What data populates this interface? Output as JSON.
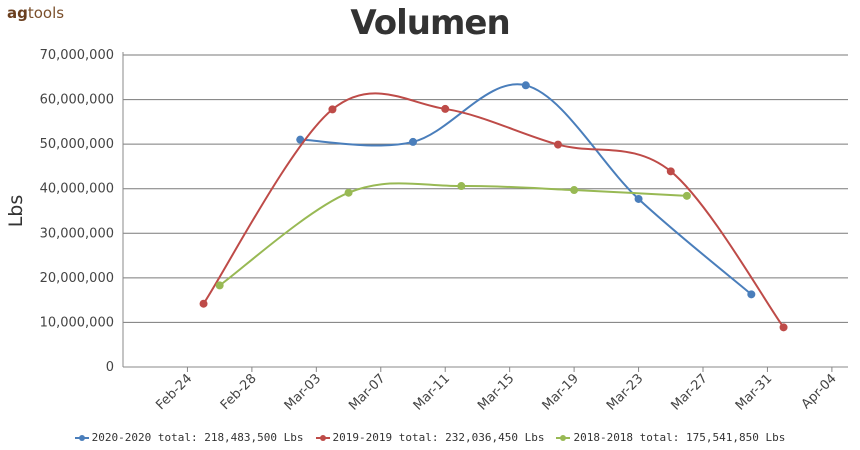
{
  "logo": {
    "bold": "ag",
    "rest": "tools"
  },
  "chart_data": {
    "type": "line",
    "title": "Volumen",
    "ylabel": "Lbs",
    "xlabel": "",
    "ylim": [
      0,
      70000000
    ],
    "yticks": [
      0,
      10000000,
      20000000,
      30000000,
      40000000,
      50000000,
      60000000,
      70000000
    ],
    "ytick_labels": [
      "0",
      "10,000,000",
      "20,000,000",
      "30,000,000",
      "40,000,000",
      "50,000,000",
      "60,000,000",
      "70,000,000"
    ],
    "xlim": [
      "2020-02-20",
      "2020-04-05"
    ],
    "xticks": [
      "2020-02-24",
      "2020-02-28",
      "2020-03-03",
      "2020-03-07",
      "2020-03-11",
      "2020-03-15",
      "2020-03-19",
      "2020-03-23",
      "2020-03-27",
      "2020-03-31",
      "2020-04-04"
    ],
    "xtick_labels": [
      "Feb-24",
      "Feb-28",
      "Mar-03",
      "Mar-07",
      "Mar-11",
      "Mar-15",
      "Mar-19",
      "Mar-23",
      "Mar-27",
      "Mar-31",
      "Apr-04"
    ],
    "grid": "horizontal",
    "legend_position": "bottom",
    "series": [
      {
        "name": "2020-2020 total: 218,483,500 Lbs",
        "color": "#4a7ebb",
        "points": [
          {
            "x": "2020-03-02",
            "y": 51000000
          },
          {
            "x": "2020-03-09",
            "y": 50500000
          },
          {
            "x": "2020-03-16",
            "y": 63200000
          },
          {
            "x": "2020-03-23",
            "y": 37700000
          },
          {
            "x": "2020-03-30",
            "y": 16300000
          }
        ]
      },
      {
        "name": "2019-2019 total: 232,036,450 Lbs",
        "color": "#be4b48",
        "points": [
          {
            "x": "2020-02-25",
            "y": 14200000
          },
          {
            "x": "2020-03-04",
            "y": 57800000
          },
          {
            "x": "2020-03-11",
            "y": 57900000
          },
          {
            "x": "2020-03-18",
            "y": 49900000
          },
          {
            "x": "2020-03-25",
            "y": 43900000
          },
          {
            "x": "2020-04-01",
            "y": 8900000
          }
        ]
      },
      {
        "name": "2018-2018 total: 175,541,850 Lbs",
        "color": "#98b954",
        "points": [
          {
            "x": "2020-02-26",
            "y": 18300000
          },
          {
            "x": "2020-03-05",
            "y": 39100000
          },
          {
            "x": "2020-03-12",
            "y": 40600000
          },
          {
            "x": "2020-03-19",
            "y": 39700000
          },
          {
            "x": "2020-03-26",
            "y": 38400000
          }
        ]
      }
    ]
  }
}
